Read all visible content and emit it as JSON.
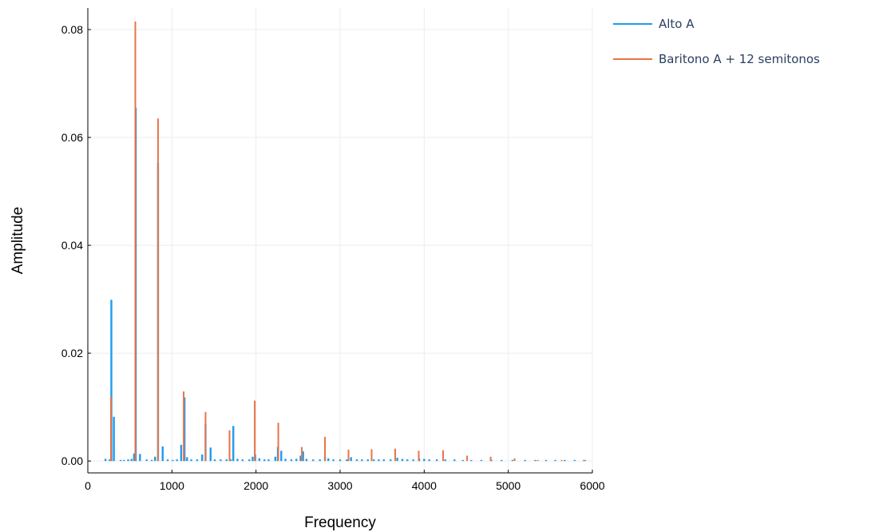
{
  "chart_data": {
    "type": "bar",
    "xlabel": "Frequency",
    "ylabel": "Amplitude",
    "xlim": [
      0,
      6000
    ],
    "ylim": [
      -0.0022,
      0.084
    ],
    "xticks": [
      0,
      1000,
      2000,
      3000,
      4000,
      5000,
      6000
    ],
    "xtick_labels": [
      "0",
      "1000",
      "2000",
      "3000",
      "4000",
      "5000",
      "6000"
    ],
    "yticks": [
      0.0,
      0.02,
      0.04,
      0.06,
      0.08
    ],
    "ytick_labels": [
      "0.00",
      "0.02",
      "0.04",
      "0.06",
      "0.08"
    ],
    "grid": true,
    "legend_position": "top-right-outside",
    "series": [
      {
        "name": "Alto A",
        "color": "#1f9bef",
        "points": [
          [
            210,
            0.0004
          ],
          [
            260,
            0.0003
          ],
          [
            280,
            0.0299
          ],
          [
            310,
            0.0082
          ],
          [
            390,
            0.0002
          ],
          [
            430,
            0.0002
          ],
          [
            480,
            0.0003
          ],
          [
            520,
            0.0004
          ],
          [
            550,
            0.0014
          ],
          [
            570,
            0.0655
          ],
          [
            620,
            0.0013
          ],
          [
            700,
            0.0003
          ],
          [
            760,
            0.0002
          ],
          [
            800,
            0.0008
          ],
          [
            835,
            0.0553
          ],
          [
            890,
            0.0027
          ],
          [
            950,
            0.0003
          ],
          [
            1010,
            0.0002
          ],
          [
            1060,
            0.0003
          ],
          [
            1110,
            0.003
          ],
          [
            1150,
            0.0118
          ],
          [
            1180,
            0.0007
          ],
          [
            1230,
            0.0003
          ],
          [
            1300,
            0.0003
          ],
          [
            1360,
            0.0012
          ],
          [
            1400,
            0.0069
          ],
          [
            1460,
            0.0025
          ],
          [
            1510,
            0.0003
          ],
          [
            1580,
            0.0003
          ],
          [
            1650,
            0.0003
          ],
          [
            1700,
            0.0003
          ],
          [
            1730,
            0.0065
          ],
          [
            1780,
            0.0004
          ],
          [
            1840,
            0.0003
          ],
          [
            1920,
            0.0003
          ],
          [
            1960,
            0.0008
          ],
          [
            1990,
            0.0012
          ],
          [
            2040,
            0.0005
          ],
          [
            2100,
            0.0003
          ],
          [
            2150,
            0.0003
          ],
          [
            2230,
            0.0008
          ],
          [
            2260,
            0.0026
          ],
          [
            2300,
            0.0019
          ],
          [
            2350,
            0.0004
          ],
          [
            2420,
            0.0003
          ],
          [
            2480,
            0.0004
          ],
          [
            2530,
            0.001
          ],
          [
            2560,
            0.0018
          ],
          [
            2600,
            0.0004
          ],
          [
            2680,
            0.0003
          ],
          [
            2760,
            0.0003
          ],
          [
            2820,
            0.0008
          ],
          [
            2860,
            0.0005
          ],
          [
            2920,
            0.0003
          ],
          [
            3000,
            0.0003
          ],
          [
            3080,
            0.0003
          ],
          [
            3130,
            0.0007
          ],
          [
            3200,
            0.0003
          ],
          [
            3260,
            0.0003
          ],
          [
            3330,
            0.0003
          ],
          [
            3400,
            0.0003
          ],
          [
            3460,
            0.0003
          ],
          [
            3520,
            0.0003
          ],
          [
            3600,
            0.0003
          ],
          [
            3680,
            0.0006
          ],
          [
            3740,
            0.0004
          ],
          [
            3800,
            0.0003
          ],
          [
            3870,
            0.0003
          ],
          [
            3940,
            0.0005
          ],
          [
            4000,
            0.0004
          ],
          [
            4060,
            0.0003
          ],
          [
            4150,
            0.0003
          ],
          [
            4250,
            0.0003
          ],
          [
            4360,
            0.0003
          ],
          [
            4460,
            0.0002
          ],
          [
            4560,
            0.0002
          ],
          [
            4680,
            0.0002
          ],
          [
            4800,
            0.0002
          ],
          [
            4920,
            0.0002
          ],
          [
            5050,
            0.0002
          ],
          [
            5200,
            0.0002
          ],
          [
            5320,
            0.0002
          ],
          [
            5450,
            0.0002
          ],
          [
            5560,
            0.0002
          ],
          [
            5670,
            0.0002
          ],
          [
            5790,
            0.0002
          ],
          [
            5900,
            0.0002
          ]
        ]
      },
      {
        "name": "Baritono A + 12 semitonos",
        "color": "#e8744a",
        "points": [
          [
            275,
            0.0119
          ],
          [
            565,
            0.0815
          ],
          [
            835,
            0.0635
          ],
          [
            1140,
            0.0129
          ],
          [
            1400,
            0.0091
          ],
          [
            1685,
            0.0057
          ],
          [
            1985,
            0.0112
          ],
          [
            2265,
            0.0071
          ],
          [
            2545,
            0.0026
          ],
          [
            2820,
            0.0045
          ],
          [
            3100,
            0.0021
          ],
          [
            3375,
            0.0022
          ],
          [
            3655,
            0.0023
          ],
          [
            3935,
            0.0019
          ],
          [
            4225,
            0.002
          ],
          [
            4510,
            0.001
          ],
          [
            4790,
            0.0008
          ],
          [
            5075,
            0.0005
          ],
          [
            5350,
            0.0002
          ],
          [
            5635,
            0.0002
          ],
          [
            5915,
            0.0002
          ]
        ]
      }
    ]
  }
}
